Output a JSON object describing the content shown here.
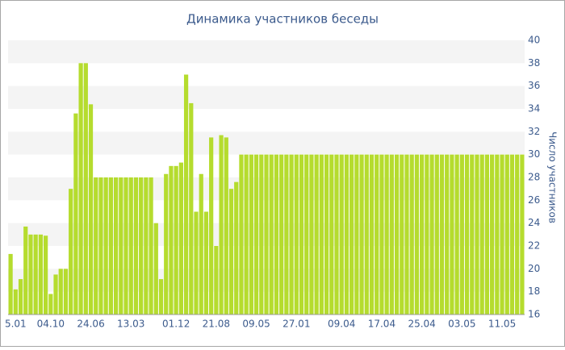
{
  "chart_data": {
    "type": "bar",
    "title": "Динамика участников беседы",
    "y_label": "Число участников",
    "categories": [
      null,
      "5.01",
      null,
      null,
      null,
      null,
      null,
      null,
      "04.10",
      null,
      null,
      null,
      null,
      null,
      null,
      null,
      "24.06",
      null,
      null,
      null,
      null,
      null,
      null,
      null,
      "13.03",
      null,
      null,
      null,
      null,
      null,
      null,
      null,
      null,
      "01.12",
      null,
      null,
      null,
      null,
      null,
      null,
      null,
      "21.08",
      null,
      null,
      null,
      null,
      null,
      null,
      null,
      "09.05",
      null,
      null,
      null,
      null,
      null,
      null,
      null,
      "27.01",
      null,
      null,
      null,
      null,
      null,
      null,
      null,
      null,
      "09.04",
      null,
      null,
      null,
      null,
      null,
      null,
      null,
      "17.04",
      null,
      null,
      null,
      null,
      null,
      null,
      null,
      "25.04",
      null,
      null,
      null,
      null,
      null,
      null,
      null,
      "03.05",
      null,
      null,
      null,
      null,
      null,
      null,
      null,
      "11.05",
      null,
      null,
      null,
      null
    ],
    "values": [
      21.3,
      18.2,
      19.1,
      23.7,
      23.0,
      23.0,
      23.0,
      22.9,
      17.8,
      19.5,
      20.0,
      20.0,
      27.0,
      33.6,
      38.0,
      38.0,
      34.4,
      28,
      28,
      28,
      28,
      28,
      28,
      28,
      28,
      28,
      28,
      28,
      28,
      24,
      19.1,
      28.3,
      29,
      29,
      29.3,
      37,
      34.5,
      25,
      28.3,
      25,
      31.5,
      22,
      31.7,
      31.5,
      27,
      27.6,
      30,
      30,
      30,
      30,
      30,
      30,
      30,
      30,
      30,
      30,
      30,
      30,
      30,
      30,
      30,
      30,
      30,
      30,
      30,
      30,
      30,
      30,
      30,
      30,
      30,
      30,
      30,
      30,
      30,
      30,
      30,
      30,
      30,
      30,
      30,
      30,
      30,
      30,
      30,
      30,
      30,
      30,
      30,
      30,
      30,
      30,
      30,
      30,
      30,
      30,
      30,
      30,
      30,
      30,
      30,
      30,
      30
    ],
    "color": "#b5dc2e",
    "ylim": [
      16,
      40
    ],
    "yticks": [
      16,
      18,
      20,
      22,
      24,
      26,
      28,
      30,
      32,
      34,
      36,
      38,
      40
    ],
    "grid_bands": true,
    "y_axis_side": "right"
  }
}
